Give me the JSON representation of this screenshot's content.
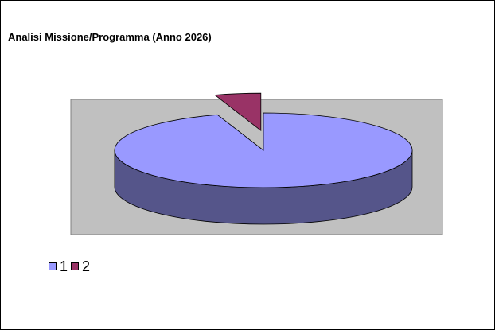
{
  "chart_data": {
    "type": "pie",
    "title": "Analisi Missione/Programma (Anno 2026)",
    "categories": [
      "1",
      "2"
    ],
    "values": [
      95,
      5
    ],
    "colors": [
      "#9999ff",
      "#993366"
    ],
    "side_colors": [
      "#55558a",
      "#5c1e3d"
    ],
    "plot_background": "#c0c0c0",
    "legend_position": "bottom-left",
    "exploded_slice": "2",
    "three_d": true
  }
}
